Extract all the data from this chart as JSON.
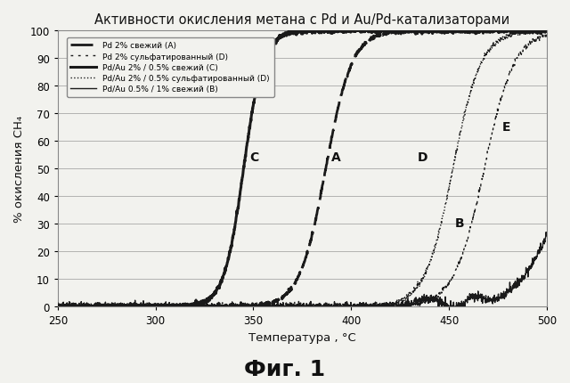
{
  "title": "Активности окисления метана с Pd и Au/Pd-катализаторами",
  "xlabel": "Температура , °C",
  "ylabel": "% окисления CH₄",
  "fig_label": "Фиг. 1",
  "xlim": [
    250,
    500
  ],
  "ylim": [
    0,
    100
  ],
  "xticks": [
    250,
    300,
    350,
    400,
    450,
    500
  ],
  "yticks": [
    0,
    10,
    20,
    30,
    40,
    50,
    60,
    70,
    80,
    90,
    100
  ],
  "background": "#f2f2ee",
  "legend_entries": [
    "Pd 2% свежий (A)",
    "Pd 2% сульфатированный (D)",
    "Pd/Au 2% / 0.5% свежий (C)",
    "Pd/Au 2% / 0.5% сульфатированный (D)",
    "Pd/Au 0.5% / 1% свежий (B)"
  ]
}
